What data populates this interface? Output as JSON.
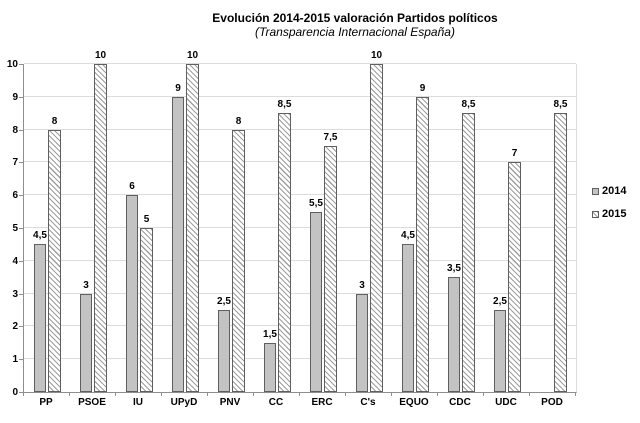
{
  "page": {
    "title": "Evolución 2014-2015 valoración Partidos políticos",
    "subtitle": "(Transparencia Internacional España)"
  },
  "legend": {
    "position": "right",
    "items": [
      {
        "label": "2014",
        "swatch": "solid-gray-square"
      },
      {
        "label": "2015",
        "swatch": "diagonal-hatch-square"
      }
    ]
  },
  "chart_data": {
    "type": "bar",
    "title": "Evolución 2014-2015 valoración Partidos políticos",
    "subtitle": "(Transparencia Internacional España)",
    "categories": [
      "PP",
      "PSOE",
      "IU",
      "UPyD",
      "PNV",
      "CC",
      "ERC",
      "C's",
      "EQUO",
      "CDC",
      "UDC",
      "POD"
    ],
    "series": [
      {
        "name": "2014",
        "values": [
          4.5,
          3,
          6,
          9,
          2.5,
          1.5,
          5.5,
          3,
          4.5,
          3.5,
          2.5,
          null
        ],
        "labels": [
          "4,5",
          "3",
          "6",
          "9",
          "2,5",
          "1,5",
          "5,5",
          "3",
          "4,5",
          "3,5",
          "2,5",
          ""
        ]
      },
      {
        "name": "2015",
        "values": [
          8,
          10,
          5,
          10,
          8,
          8.5,
          7.5,
          10,
          9,
          8.5,
          7,
          8.5
        ],
        "labels": [
          "8",
          "10",
          "5",
          "10",
          "8",
          "8,5",
          "7,5",
          "10",
          "9",
          "8,5",
          "7",
          "8,5"
        ]
      }
    ],
    "ylim": [
      0,
      10
    ],
    "yticks": [
      0,
      1,
      2,
      3,
      4,
      5,
      6,
      7,
      8,
      9,
      10
    ],
    "grid": true,
    "legend_position": "right",
    "decimal_separator": ","
  },
  "colors": {
    "bar_2014_fill": "#c3c3c3",
    "bar_border": "#5f5f5f",
    "hatch_line": "#9e9e9e",
    "hatch_bg": "#ffffff",
    "gridline": "#dcdcdc",
    "axis_line": "#8e8e8e",
    "text": "#000000"
  }
}
